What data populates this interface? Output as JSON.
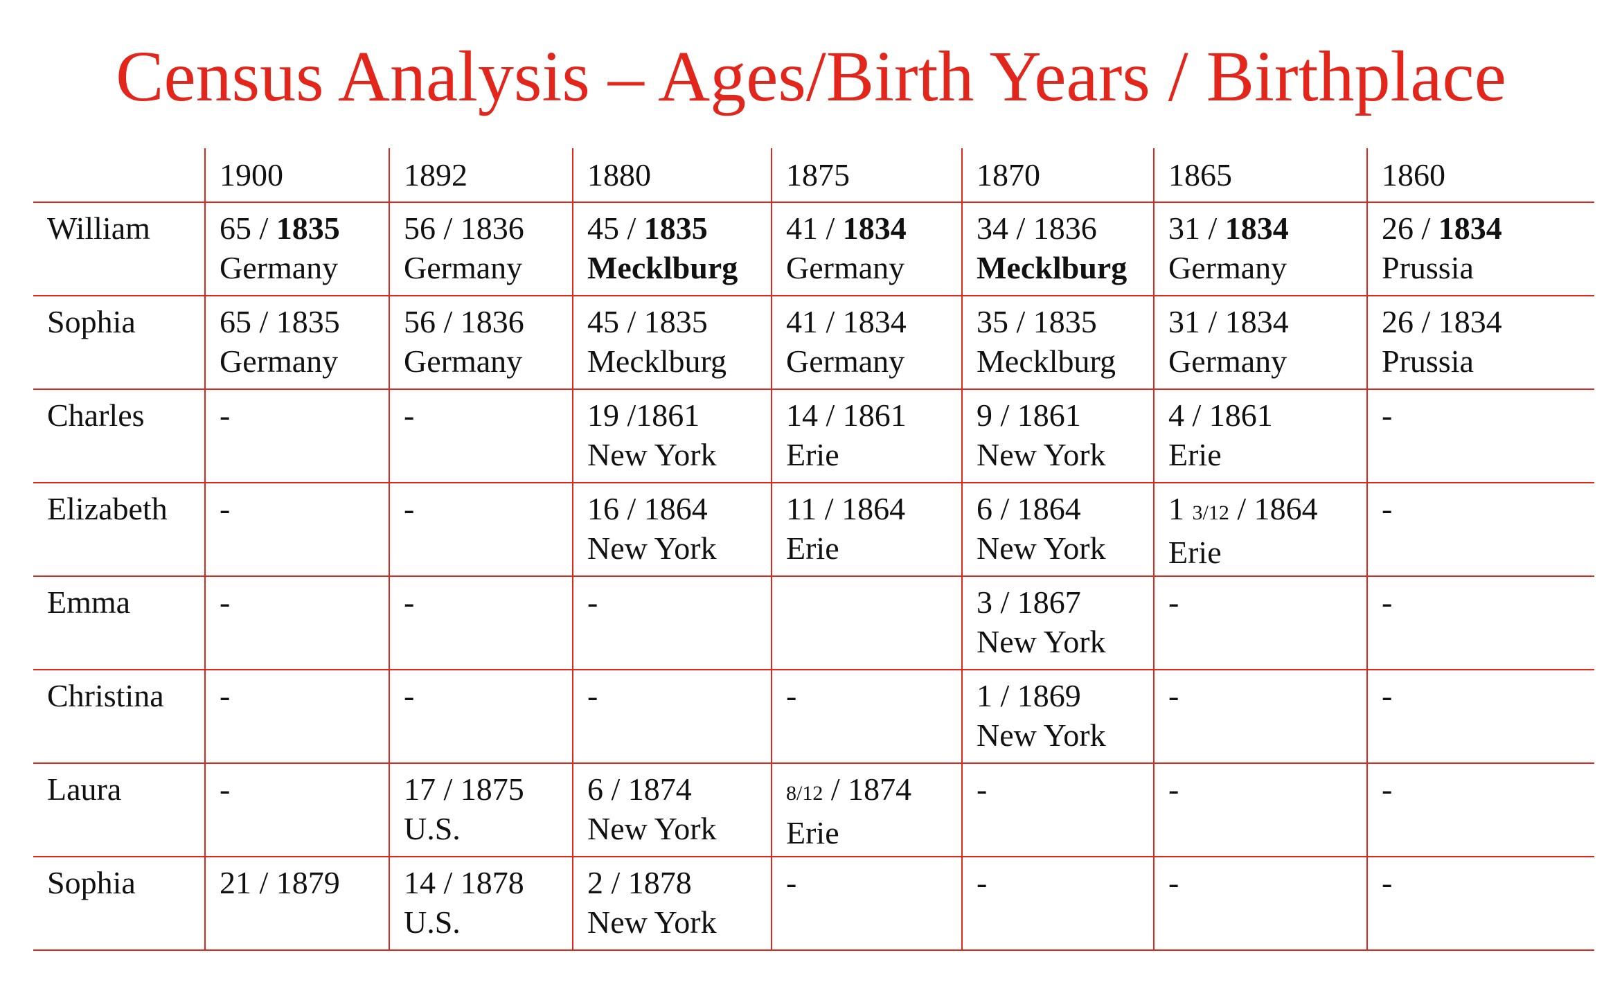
{
  "title": "Census Analysis – Ages/Birth Years / Birthplace",
  "header": [
    "",
    "1900",
    "1892",
    "1880",
    "1875",
    "1870",
    "1865",
    "1860"
  ],
  "rows": [
    {
      "name": "William",
      "cells": [
        [
          {
            "t": "65 / "
          },
          {
            "t": "1835",
            "b": true
          },
          {
            "br": true
          },
          {
            "t": "Germany"
          }
        ],
        [
          {
            "t": "56 / 1836"
          },
          {
            "br": true
          },
          {
            "t": "Germany"
          }
        ],
        [
          {
            "t": "45 / "
          },
          {
            "t": "1835",
            "b": true
          },
          {
            "br": true
          },
          {
            "t": "Mecklburg",
            "b": true
          }
        ],
        [
          {
            "t": "41 / "
          },
          {
            "t": "1834",
            "b": true
          },
          {
            "br": true
          },
          {
            "t": "Germany"
          }
        ],
        [
          {
            "t": "34 / 1836"
          },
          {
            "br": true
          },
          {
            "t": "Mecklburg",
            "b": true
          }
        ],
        [
          {
            "t": "31 / "
          },
          {
            "t": "1834",
            "b": true
          },
          {
            "br": true
          },
          {
            "t": "Germany"
          }
        ],
        [
          {
            "t": "26 / "
          },
          {
            "t": "1834",
            "b": true
          },
          {
            "br": true
          },
          {
            "t": "Prussia"
          }
        ]
      ]
    },
    {
      "name": "Sophia",
      "cells": [
        [
          {
            "t": "65 / 1835"
          },
          {
            "br": true
          },
          {
            "t": "Germany"
          }
        ],
        [
          {
            "t": "56 / 1836"
          },
          {
            "br": true
          },
          {
            "t": "Germany"
          }
        ],
        [
          {
            "t": "45 / 1835"
          },
          {
            "br": true
          },
          {
            "t": "Mecklburg"
          }
        ],
        [
          {
            "t": "41 / 1834"
          },
          {
            "br": true
          },
          {
            "t": "Germany"
          }
        ],
        [
          {
            "t": "35 / 1835"
          },
          {
            "br": true
          },
          {
            "t": "Mecklburg"
          }
        ],
        [
          {
            "t": "31 / 1834"
          },
          {
            "br": true
          },
          {
            "t": "Germany"
          }
        ],
        [
          {
            "t": "26 / 1834"
          },
          {
            "br": true
          },
          {
            "t": "Prussia"
          }
        ]
      ]
    },
    {
      "name": "Charles",
      "cells": [
        [
          {
            "t": "-"
          }
        ],
        [
          {
            "t": "-"
          }
        ],
        [
          {
            "t": "19 /1861"
          },
          {
            "br": true
          },
          {
            "t": "New York"
          }
        ],
        [
          {
            "t": "14 / 1861"
          },
          {
            "br": true
          },
          {
            "t": "Erie"
          }
        ],
        [
          {
            "t": "9 / 1861"
          },
          {
            "br": true
          },
          {
            "t": "New York"
          }
        ],
        [
          {
            "t": "4 / 1861"
          },
          {
            "br": true
          },
          {
            "t": "Erie"
          }
        ],
        [
          {
            "t": "-"
          }
        ]
      ]
    },
    {
      "name": "Elizabeth",
      "cells": [
        [
          {
            "t": "-"
          }
        ],
        [
          {
            "t": "-"
          }
        ],
        [
          {
            "t": "16 / 1864"
          },
          {
            "br": true
          },
          {
            "t": "New York"
          }
        ],
        [
          {
            "t": "11 / 1864"
          },
          {
            "br": true
          },
          {
            "t": "Erie"
          }
        ],
        [
          {
            "t": "6 / 1864"
          },
          {
            "br": true
          },
          {
            "t": "New York"
          }
        ],
        [
          {
            "t": "1 "
          },
          {
            "t": "3/12",
            "small": true
          },
          {
            "t": " / 1864"
          },
          {
            "br": true
          },
          {
            "t": "Erie"
          }
        ],
        [
          {
            "t": "-"
          }
        ]
      ]
    },
    {
      "name": "Emma",
      "cells": [
        [
          {
            "t": "-"
          }
        ],
        [
          {
            "t": "-"
          }
        ],
        [
          {
            "t": "-"
          }
        ],
        [],
        [
          {
            "t": "3 / 1867"
          },
          {
            "br": true
          },
          {
            "t": "New York"
          }
        ],
        [
          {
            "t": "-"
          }
        ],
        [
          {
            "t": "-"
          }
        ]
      ]
    },
    {
      "name": "Christina",
      "cells": [
        [
          {
            "t": "-"
          }
        ],
        [
          {
            "t": "-"
          }
        ],
        [
          {
            "t": "-"
          }
        ],
        [
          {
            "t": "-"
          }
        ],
        [
          {
            "t": "1 / 1869"
          },
          {
            "br": true
          },
          {
            "t": "New York"
          }
        ],
        [
          {
            "t": "-"
          }
        ],
        [
          {
            "t": "-"
          }
        ]
      ]
    },
    {
      "name": "Laura",
      "cells": [
        [
          {
            "t": "-"
          }
        ],
        [
          {
            "t": "17 / 1875"
          },
          {
            "br": true
          },
          {
            "t": "U.S."
          }
        ],
        [
          {
            "t": "6 / 1874"
          },
          {
            "br": true
          },
          {
            "t": "New York"
          }
        ],
        [
          {
            "t": "8/12",
            "small": true
          },
          {
            "t": " / 1874"
          },
          {
            "br": true
          },
          {
            "t": "Erie"
          }
        ],
        [
          {
            "t": "-"
          }
        ],
        [
          {
            "t": "-"
          }
        ],
        [
          {
            "t": "-"
          }
        ]
      ]
    },
    {
      "name": "Sophia",
      "cells": [
        [
          {
            "t": "21 / 1879"
          }
        ],
        [
          {
            "t": "14 / 1878"
          },
          {
            "br": true
          },
          {
            "t": "U.S."
          }
        ],
        [
          {
            "t": "2 / 1878"
          },
          {
            "br": true
          },
          {
            "t": "New York"
          }
        ],
        [
          {
            "t": "-"
          }
        ],
        [
          {
            "t": "-"
          }
        ],
        [
          {
            "t": "-"
          }
        ],
        [
          {
            "t": "-"
          }
        ]
      ]
    }
  ],
  "colors": {
    "accent": "#e2261c",
    "text": "#111111"
  }
}
